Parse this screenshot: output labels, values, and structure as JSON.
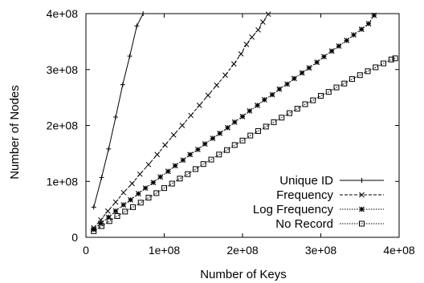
{
  "chart_data": {
    "type": "line",
    "xlabel": "Number of Keys",
    "ylabel": "Number of Nodes",
    "xlim": [
      0,
      400000000
    ],
    "ylim": [
      0,
      400000000
    ],
    "xticks": [
      {
        "value": 0,
        "label": "0"
      },
      {
        "value": 100000000,
        "label": "1e+08"
      },
      {
        "value": 200000000,
        "label": "2e+08"
      },
      {
        "value": 300000000,
        "label": "3e+08"
      },
      {
        "value": 400000000,
        "label": "4e+08"
      }
    ],
    "yticks": [
      {
        "value": 0,
        "label": "0"
      },
      {
        "value": 100000000,
        "label": "1e+08"
      },
      {
        "value": 200000000,
        "label": "2e+08"
      },
      {
        "value": 300000000,
        "label": "3e+08"
      },
      {
        "value": 400000000,
        "label": "4e+08"
      }
    ],
    "grid": false,
    "legend_position": "bottom-right",
    "series": [
      {
        "name": "Unique ID",
        "marker": "plus",
        "dash": "solid",
        "x": [
          10000000,
          20000000,
          29000000,
          38000000,
          47000000,
          56000000,
          65000000,
          73000000
        ],
        "y": [
          54000000,
          107000000,
          158000000,
          215000000,
          273000000,
          324000000,
          378000000,
          400000000
        ]
      },
      {
        "name": "Frequency",
        "marker": "cross",
        "dash": "dashed",
        "x": [
          10000000,
          19000000,
          28000000,
          38000000,
          48000000,
          59000000,
          69000000,
          80000000,
          91000000,
          101000000,
          112000000,
          123000000,
          134000000,
          145000000,
          156000000,
          167000000,
          178000000,
          189000000,
          198000000,
          205000000,
          212000000,
          220000000,
          226000000,
          233000000
        ],
        "y": [
          17000000,
          31000000,
          47000000,
          63000000,
          80000000,
          96000000,
          113000000,
          130000000,
          148000000,
          165000000,
          183000000,
          200000000,
          218000000,
          236000000,
          254000000,
          272000000,
          290000000,
          310000000,
          328000000,
          345000000,
          358000000,
          371000000,
          385000000,
          399000000
        ]
      },
      {
        "name": "Log Frequency",
        "marker": "star",
        "dash": "dotted",
        "x": [
          10000000,
          19000000,
          29000000,
          38000000,
          48000000,
          57000000,
          67000000,
          76000000,
          86000000,
          95000000,
          105000000,
          114000000,
          124000000,
          133000000,
          143000000,
          152000000,
          162000000,
          171000000,
          181000000,
          190000000,
          200000000,
          209000000,
          219000000,
          228000000,
          238000000,
          247000000,
          257000000,
          266000000,
          276000000,
          285000000,
          295000000,
          304000000,
          314000000,
          323000000,
          333000000,
          342000000,
          352000000,
          361000000,
          368000000
        ],
        "y": [
          14000000,
          25000000,
          36000000,
          47000000,
          58000000,
          67000000,
          78000000,
          88000000,
          98000000,
          108000000,
          118000000,
          128000000,
          138000000,
          148000000,
          157000000,
          167000000,
          177000000,
          186000000,
          196000000,
          206000000,
          216000000,
          226000000,
          236000000,
          246000000,
          255000000,
          265000000,
          274000000,
          284000000,
          294000000,
          303000000,
          313000000,
          323000000,
          333000000,
          342000000,
          352000000,
          362000000,
          372000000,
          382000000,
          397000000
        ]
      },
      {
        "name": "No Record",
        "marker": "square",
        "dash": "dotted",
        "x": [
          10000000,
          20000000,
          30000000,
          40000000,
          50000000,
          60000000,
          70000000,
          80000000,
          90000000,
          100000000,
          110000000,
          120000000,
          130000000,
          140000000,
          150000000,
          160000000,
          170000000,
          180000000,
          190000000,
          200000000,
          210000000,
          220000000,
          230000000,
          240000000,
          250000000,
          260000000,
          270000000,
          280000000,
          290000000,
          300000000,
          310000000,
          320000000,
          330000000,
          340000000,
          350000000,
          360000000,
          370000000,
          380000000,
          390000000,
          395000000
        ],
        "y": [
          11000000,
          20000000,
          29000000,
          38000000,
          46000000,
          54000000,
          62000000,
          71000000,
          79000000,
          88000000,
          96000000,
          105000000,
          113000000,
          122000000,
          131000000,
          139000000,
          148000000,
          156000000,
          165000000,
          173000000,
          182000000,
          190000000,
          198000000,
          206000000,
          214000000,
          222000000,
          230000000,
          238000000,
          245000000,
          253000000,
          260000000,
          268000000,
          275000000,
          283000000,
          290000000,
          297000000,
          304000000,
          311000000,
          318000000,
          320000000
        ]
      }
    ]
  }
}
